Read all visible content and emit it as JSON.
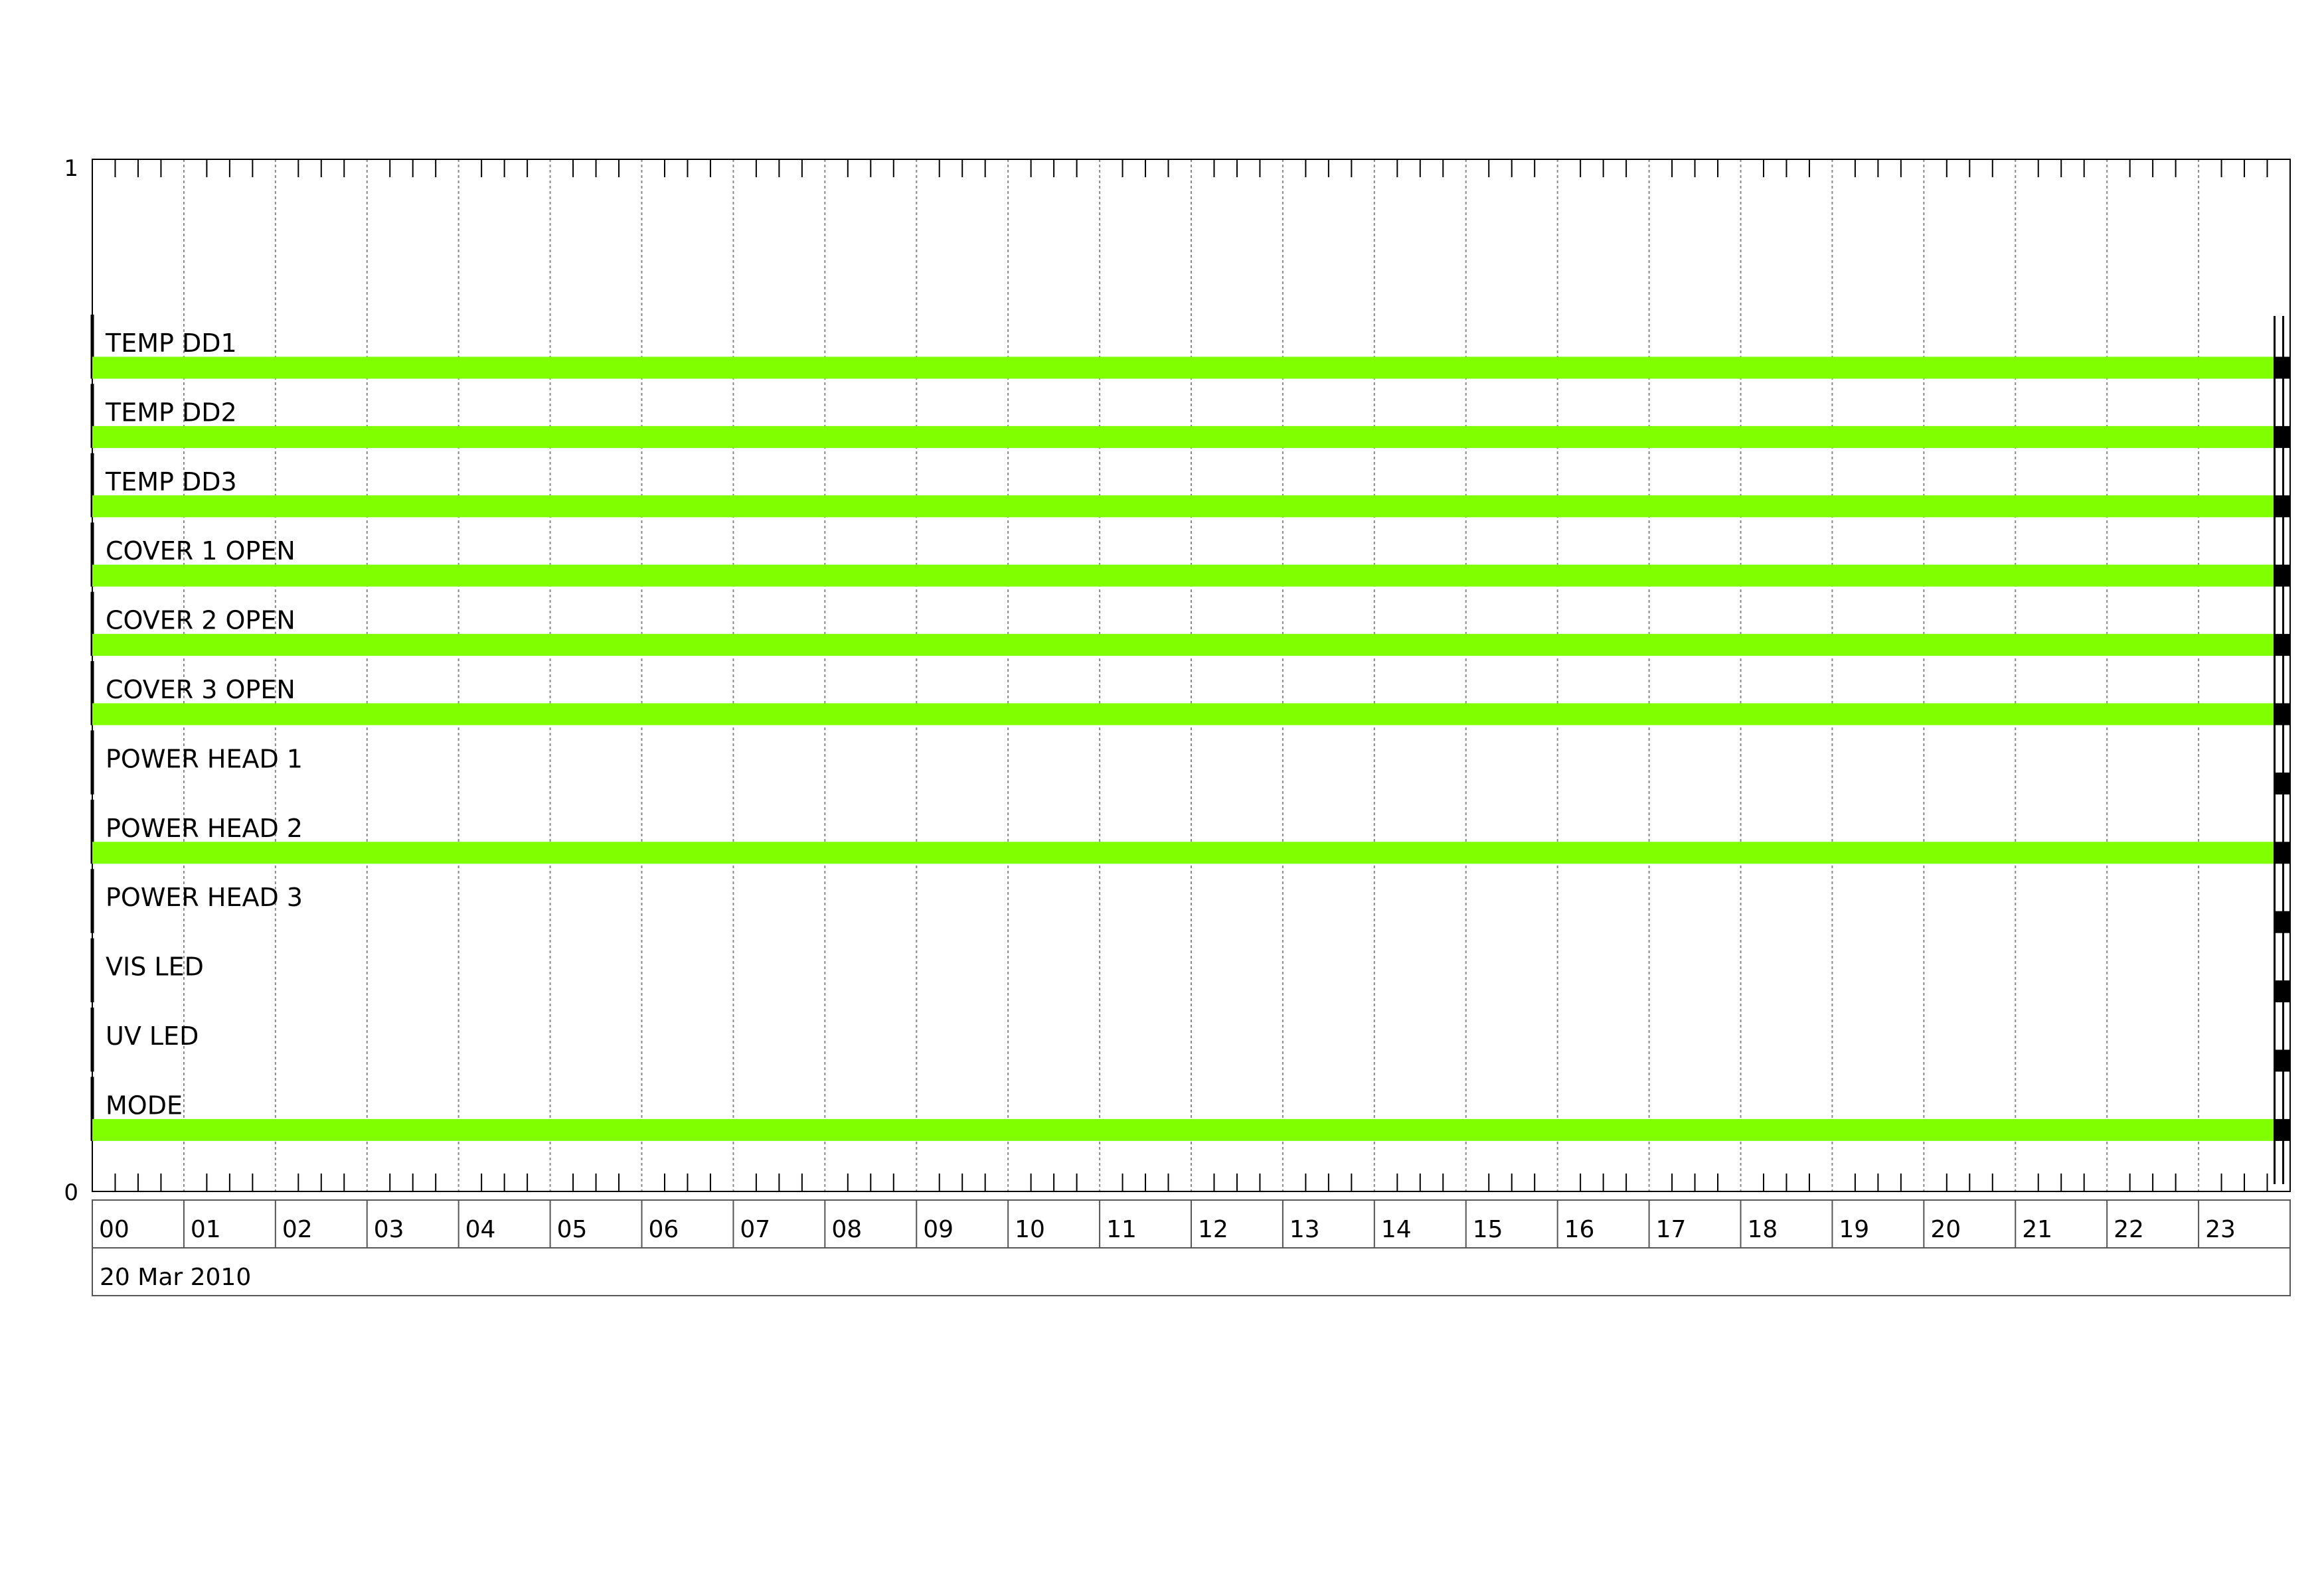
{
  "chart_data": {
    "type": "timeline",
    "y_axis": {
      "top_label": "1",
      "bottom_label": "0",
      "ylim": [
        0,
        1
      ]
    },
    "x_axis": {
      "tick_labels": [
        "00",
        "01",
        "02",
        "03",
        "04",
        "05",
        "06",
        "07",
        "08",
        "09",
        "10",
        "11",
        "12",
        "13",
        "14",
        "15",
        "16",
        "17",
        "18",
        "19",
        "20",
        "21",
        "22",
        "23"
      ],
      "date_label": "20 Mar 2010",
      "range_hours": [
        0,
        24
      ],
      "minor_ticks_per_hour": 4
    },
    "grid": true,
    "colors": {
      "on": "#7fff00",
      "end_marker": "#000000",
      "grid": "#888888"
    },
    "series": [
      {
        "name": "TEMP DD1",
        "active_hours": [
          0,
          23.83
        ]
      },
      {
        "name": "TEMP DD2",
        "active_hours": [
          0,
          23.83
        ]
      },
      {
        "name": "TEMP DD3",
        "active_hours": [
          0,
          23.83
        ]
      },
      {
        "name": "COVER 1 OPEN",
        "active_hours": [
          0,
          23.83
        ]
      },
      {
        "name": "COVER 2 OPEN",
        "active_hours": [
          0,
          23.83
        ]
      },
      {
        "name": "COVER 3 OPEN",
        "active_hours": [
          0,
          23.83
        ]
      },
      {
        "name": "POWER HEAD 1",
        "active_hours": null
      },
      {
        "name": "POWER HEAD 2",
        "active_hours": [
          0,
          23.83
        ]
      },
      {
        "name": "POWER HEAD 3",
        "active_hours": null
      },
      {
        "name": "VIS LED",
        "active_hours": null
      },
      {
        "name": "UV LED",
        "active_hours": null
      },
      {
        "name": "MODE",
        "active_hours": [
          0,
          23.83
        ]
      }
    ]
  }
}
